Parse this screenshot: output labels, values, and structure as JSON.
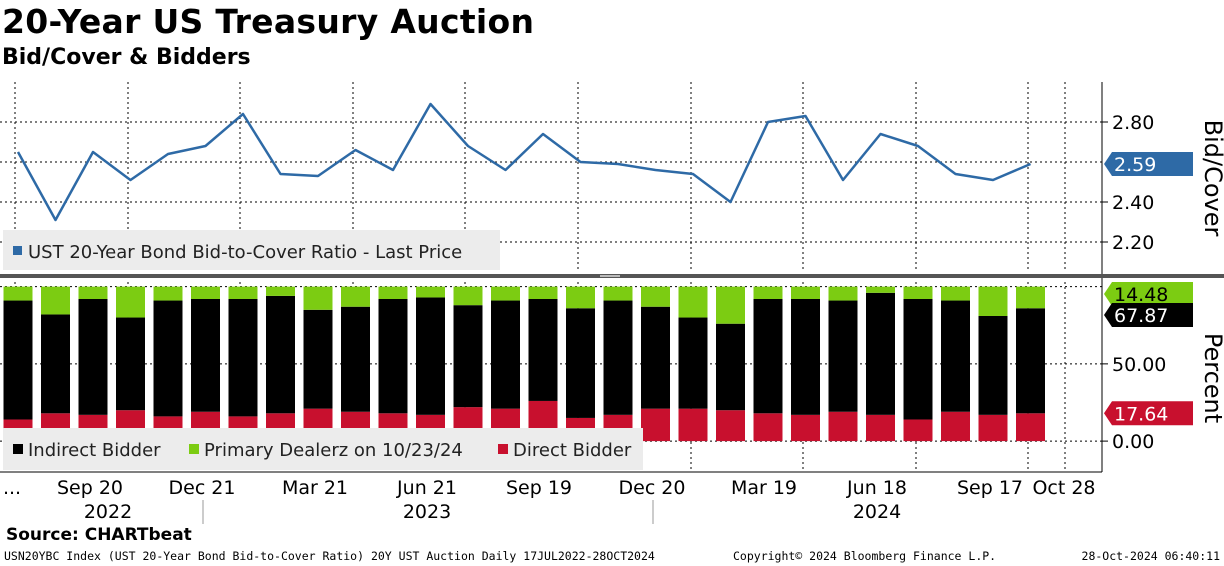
{
  "title": "20-Year US Treasury Auction",
  "subtitle": "Bid/Cover & Bidders",
  "source": "Source: CHARTbeat",
  "footer": {
    "left": "USN20YBC Index (UST 20-Year Bond Bid-to-Cover Ratio) 20Y UST Auction  Daily 17JUL2022-28OCT2024",
    "middle": "Copyright© 2024 Bloomberg Finance L.P.",
    "right": "28-Oct-2024 06:40:11"
  },
  "colors": {
    "line": "#2e6aa6",
    "indirect": "#000000",
    "primary": "#7ccc12",
    "direct": "#c8102e",
    "grid": "#000000"
  },
  "x_axis": {
    "date_labels": [
      "...",
      "Sep 20",
      "Dec 21",
      "Mar 21",
      "Jun 21",
      "Sep 19",
      "Dec 20",
      "Mar 19",
      "Jun 18",
      "Sep 17",
      "Oct 28"
    ],
    "year_labels": [
      "2022",
      "2023",
      "2024"
    ]
  },
  "chart_data": [
    {
      "type": "line",
      "ylabel": "Bid/Cover",
      "yticks": [
        2.2,
        2.4,
        2.8
      ],
      "ytick_labels": [
        "2.20",
        "2.40",
        "2.80"
      ],
      "ylim": [
        2.05,
        3.0
      ],
      "last_value_label": "2.59",
      "legend": {
        "position": "bottom-left",
        "entries": [
          "UST 20-Year Bond Bid-to-Cover Ratio - Last Price"
        ]
      },
      "series": [
        {
          "name": "UST 20-Year Bond Bid-to-Cover Ratio - Last Price",
          "values": [
            2.65,
            2.31,
            2.65,
            2.51,
            2.64,
            2.68,
            2.84,
            2.54,
            2.53,
            2.66,
            2.56,
            2.89,
            2.68,
            2.56,
            2.74,
            2.6,
            2.59,
            2.56,
            2.54,
            2.4,
            2.8,
            2.83,
            2.51,
            2.74,
            2.68,
            2.54,
            2.51,
            2.59
          ]
        }
      ]
    },
    {
      "type": "bar",
      "stacked": true,
      "ylabel": "Percent",
      "yticks": [
        0,
        50
      ],
      "ytick_labels": [
        "0.00",
        "50.00"
      ],
      "ylim": [
        -20,
        103
      ],
      "last_value_labels": [
        "14.48",
        "67.87",
        "17.64"
      ],
      "legend": {
        "position": "bottom-left",
        "entries": [
          "Indirect Bidder",
          "Primary Dealerz on 10/23/24",
          "Direct Bidder"
        ]
      },
      "series": [
        {
          "name": "Direct Bidder",
          "values": [
            14,
            18,
            17,
            20,
            16,
            19,
            16,
            18,
            21,
            19,
            18,
            17,
            22,
            21,
            26,
            15,
            17,
            21,
            21,
            20,
            18,
            17,
            19,
            17,
            14,
            19,
            17,
            18
          ]
        },
        {
          "name": "Indirect Bidder",
          "values": [
            77,
            64,
            75,
            60,
            75,
            73,
            76,
            76,
            64,
            68,
            74,
            76,
            66,
            70,
            66,
            71,
            74,
            66,
            59,
            56,
            74,
            75,
            72,
            79,
            78,
            72,
            64,
            68
          ]
        },
        {
          "name": "Primary Dealerz on 10/23/24",
          "values": [
            9,
            18,
            8,
            20,
            9,
            8,
            8,
            6,
            15,
            13,
            8,
            7,
            12,
            9,
            8,
            14,
            9,
            13,
            20,
            24,
            8,
            8,
            9,
            4,
            8,
            9,
            19,
            14
          ]
        }
      ]
    }
  ]
}
